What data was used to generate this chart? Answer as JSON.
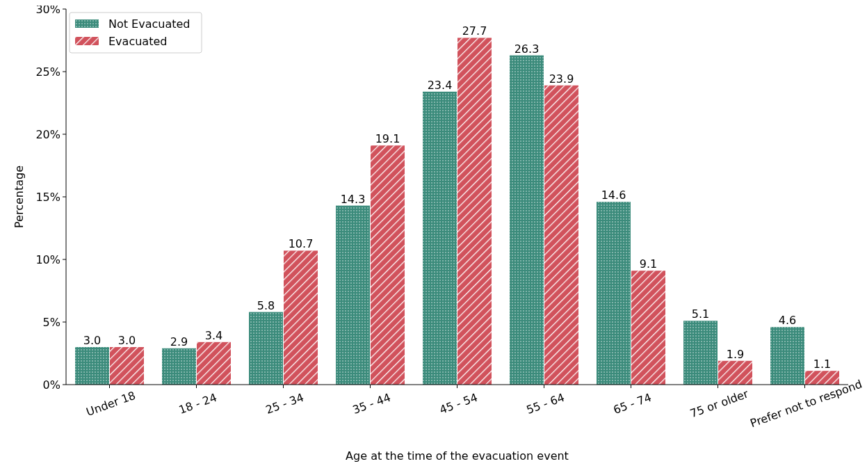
{
  "chart_data": {
    "type": "bar",
    "xlabel": "Age at the time of the evacuation event",
    "ylabel": "Percentage",
    "categories": [
      "Under 18",
      "18 - 24",
      "25 - 34",
      "35 - 44",
      "45 - 54",
      "55 - 64",
      "65 - 74",
      "75 or older",
      "Prefer not to respond"
    ],
    "series": [
      {
        "name": "Not Evacuated",
        "color": "#3b8b7b",
        "values": [
          3.0,
          2.9,
          5.8,
          14.3,
          23.4,
          26.3,
          14.6,
          5.1,
          4.6
        ],
        "value_labels": [
          "3.0",
          "2.9",
          "5.8",
          "14.3",
          "23.4",
          "26.3",
          "14.6",
          "5.1",
          "4.6"
        ]
      },
      {
        "name": "Evacuated",
        "color": "#d1525c",
        "values": [
          3.0,
          3.4,
          10.7,
          19.1,
          27.7,
          23.9,
          9.1,
          1.9,
          1.1
        ],
        "value_labels": [
          "3.0",
          "3.4",
          "10.7",
          "19.1",
          "27.7",
          "23.9",
          "9.1",
          "1.9",
          "1.1"
        ]
      }
    ],
    "ylim": [
      0,
      30
    ],
    "yticks": [
      {
        "value": 0,
        "label": "0%"
      },
      {
        "value": 5,
        "label": "5%"
      },
      {
        "value": 10,
        "label": "10%"
      },
      {
        "value": 15,
        "label": "15%"
      },
      {
        "value": 20,
        "label": "20%"
      },
      {
        "value": 25,
        "label": "25%"
      },
      {
        "value": 30,
        "label": "30%"
      }
    ],
    "grid": false,
    "legend": "top left"
  }
}
